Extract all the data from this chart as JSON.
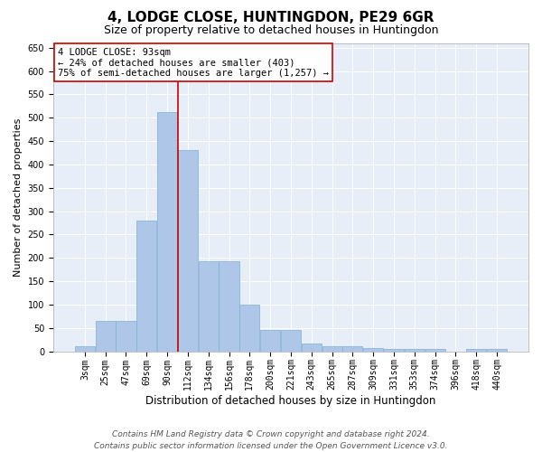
{
  "title": "4, LODGE CLOSE, HUNTINGDON, PE29 6GR",
  "subtitle": "Size of property relative to detached houses in Huntingdon",
  "xlabel": "Distribution of detached houses by size in Huntingdon",
  "ylabel": "Number of detached properties",
  "categories": [
    "3sqm",
    "25sqm",
    "47sqm",
    "69sqm",
    "90sqm",
    "112sqm",
    "134sqm",
    "156sqm",
    "178sqm",
    "200sqm",
    "221sqm",
    "243sqm",
    "265sqm",
    "287sqm",
    "309sqm",
    "331sqm",
    "353sqm",
    "374sqm",
    "396sqm",
    "418sqm",
    "440sqm"
  ],
  "values": [
    10,
    65,
    65,
    280,
    512,
    430,
    192,
    192,
    100,
    46,
    46,
    16,
    11,
    11,
    7,
    5,
    5,
    5,
    0,
    5,
    5
  ],
  "bar_color": "#aec6e8",
  "bar_edge_color": "#7ab0d4",
  "vline_color": "#cc0000",
  "vline_xindex": 4,
  "annotation_line1": "4 LODGE CLOSE: 93sqm",
  "annotation_line2": "← 24% of detached houses are smaller (403)",
  "annotation_line3": "75% of semi-detached houses are larger (1,257) →",
  "annotation_box_facecolor": "#ffffff",
  "annotation_box_edgecolor": "#cc0000",
  "ylim": [
    0,
    660
  ],
  "yticks": [
    0,
    50,
    100,
    150,
    200,
    250,
    300,
    350,
    400,
    450,
    500,
    550,
    600,
    650
  ],
  "background_color": "#e8eef8",
  "footer_line1": "Contains HM Land Registry data © Crown copyright and database right 2024.",
  "footer_line2": "Contains public sector information licensed under the Open Government Licence v3.0.",
  "title_fontsize": 11,
  "subtitle_fontsize": 9,
  "xlabel_fontsize": 8.5,
  "ylabel_fontsize": 8,
  "tick_fontsize": 7,
  "annotation_fontsize": 7.5,
  "footer_fontsize": 6.5
}
